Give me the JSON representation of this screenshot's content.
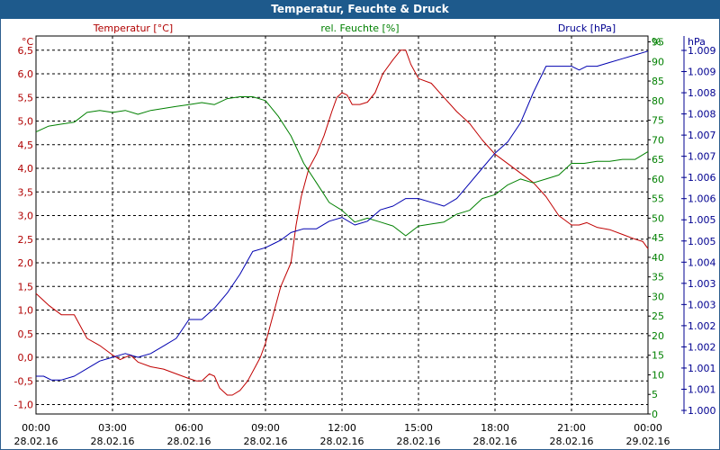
{
  "window": {
    "title": "Temperatur, Feuchte & Druck"
  },
  "chart_data": {
    "type": "line",
    "title": "Temperatur, Feuchte & Druck",
    "grid": true,
    "x": {
      "labels": [
        [
          "00:00",
          "28.02.16"
        ],
        [
          "03:00",
          "28.02.16"
        ],
        [
          "06:00",
          "28.02.16"
        ],
        [
          "09:00",
          "28.02.16"
        ],
        [
          "12:00",
          "28.02.16"
        ],
        [
          "15:00",
          "28.02.16"
        ],
        [
          "18:00",
          "28.02.16"
        ],
        [
          "21:00",
          "28.02.16"
        ],
        [
          "00:00",
          "29.02.16"
        ]
      ],
      "range_hours": [
        0,
        24
      ]
    },
    "axes": {
      "temperature": {
        "label": "Temperatur [°C]",
        "unit": "°C",
        "range": [
          -1.2,
          6.8
        ],
        "ticks": [
          "-1,0",
          "-0,5",
          "0,0",
          "0,5",
          "1,0",
          "1,5",
          "2,0",
          "2,5",
          "3,0",
          "3,5",
          "4,0",
          "4,5",
          "5,0",
          "5,5",
          "6,0",
          "6,5"
        ],
        "color": "#b00000"
      },
      "humidity": {
        "label": "rel. Feuchte [%]",
        "unit": "%",
        "range": [
          0,
          96.5
        ],
        "ticks": [
          "0",
          "5",
          "10",
          "15",
          "20",
          "25",
          "30",
          "35",
          "40",
          "45",
          "50",
          "55",
          "60",
          "65",
          "70",
          "75",
          "80",
          "85",
          "90",
          "95"
        ],
        "color": "#008000"
      },
      "pressure": {
        "label": "Druck [hPa]",
        "unit": "hPa",
        "range": [
          0.9995,
          1.0095
        ],
        "ticks": [
          "1.000",
          "1.001",
          "1.001",
          "1.002",
          "1.002",
          "1.003",
          "1.003",
          "1.004",
          "1.005",
          "1.005",
          "1.006",
          "1.006",
          "1.007",
          "1.007",
          "1.008",
          "1.008",
          "1.009",
          "1.009"
        ],
        "color": "#000090"
      }
    },
    "series": [
      {
        "name": "Temperatur [°C]",
        "axis": "temperature",
        "color": "#c00000",
        "points": [
          [
            0,
            1.35
          ],
          [
            0.5,
            1.1
          ],
          [
            1,
            0.9
          ],
          [
            1.5,
            0.9
          ],
          [
            2,
            0.4
          ],
          [
            2.5,
            0.25
          ],
          [
            3,
            0.05
          ],
          [
            3.3,
            -0.05
          ],
          [
            3.7,
            0.05
          ],
          [
            4,
            -0.1
          ],
          [
            4.5,
            -0.2
          ],
          [
            5,
            -0.25
          ],
          [
            5.5,
            -0.35
          ],
          [
            6,
            -0.45
          ],
          [
            6.3,
            -0.5
          ],
          [
            6.5,
            -0.5
          ],
          [
            6.8,
            -0.35
          ],
          [
            7,
            -0.4
          ],
          [
            7.2,
            -0.65
          ],
          [
            7.5,
            -0.8
          ],
          [
            7.7,
            -0.8
          ],
          [
            8,
            -0.7
          ],
          [
            8.3,
            -0.5
          ],
          [
            8.6,
            -0.2
          ],
          [
            8.8,
            0.0
          ],
          [
            9,
            0.3
          ],
          [
            9.3,
            0.9
          ],
          [
            9.6,
            1.5
          ],
          [
            10,
            2.0
          ],
          [
            10.2,
            2.8
          ],
          [
            10.4,
            3.4
          ],
          [
            10.7,
            4.0
          ],
          [
            11,
            4.3
          ],
          [
            11.3,
            4.7
          ],
          [
            11.6,
            5.2
          ],
          [
            11.8,
            5.5
          ],
          [
            12,
            5.6
          ],
          [
            12.2,
            5.55
          ],
          [
            12.4,
            5.35
          ],
          [
            12.7,
            5.35
          ],
          [
            13,
            5.4
          ],
          [
            13.3,
            5.6
          ],
          [
            13.6,
            6.0
          ],
          [
            14,
            6.3
          ],
          [
            14.3,
            6.5
          ],
          [
            14.5,
            6.5
          ],
          [
            14.7,
            6.2
          ],
          [
            15,
            5.9
          ],
          [
            15.5,
            5.8
          ],
          [
            16,
            5.5
          ],
          [
            16.5,
            5.2
          ],
          [
            17,
            4.95
          ],
          [
            17.5,
            4.6
          ],
          [
            18,
            4.3
          ],
          [
            18.5,
            4.1
          ],
          [
            19,
            3.9
          ],
          [
            19.5,
            3.7
          ],
          [
            20,
            3.4
          ],
          [
            20.5,
            3.0
          ],
          [
            21,
            2.8
          ],
          [
            21.3,
            2.8
          ],
          [
            21.6,
            2.85
          ],
          [
            22,
            2.75
          ],
          [
            22.5,
            2.7
          ],
          [
            23,
            2.6
          ],
          [
            23.5,
            2.5
          ],
          [
            23.8,
            2.45
          ],
          [
            24,
            2.3
          ]
        ]
      },
      {
        "name": "rel. Feuchte [%]",
        "axis": "humidity",
        "color": "#008000",
        "points": [
          [
            0,
            72
          ],
          [
            0.5,
            73.5
          ],
          [
            1,
            74
          ],
          [
            1.5,
            74.5
          ],
          [
            2,
            77
          ],
          [
            2.5,
            77.5
          ],
          [
            3,
            77
          ],
          [
            3.5,
            77.5
          ],
          [
            4,
            76.5
          ],
          [
            4.5,
            77.5
          ],
          [
            5,
            78
          ],
          [
            5.5,
            78.5
          ],
          [
            6,
            79
          ],
          [
            6.5,
            79.5
          ],
          [
            7,
            79
          ],
          [
            7.5,
            80.5
          ],
          [
            8,
            81
          ],
          [
            8.5,
            81
          ],
          [
            9,
            80
          ],
          [
            9.5,
            76
          ],
          [
            10,
            71
          ],
          [
            10.5,
            64
          ],
          [
            11,
            59
          ],
          [
            11.5,
            54
          ],
          [
            12,
            52
          ],
          [
            12.5,
            49
          ],
          [
            13,
            50
          ],
          [
            13.5,
            49
          ],
          [
            14,
            48
          ],
          [
            14.5,
            45.5
          ],
          [
            15,
            48
          ],
          [
            15.5,
            48.5
          ],
          [
            16,
            49
          ],
          [
            16.5,
            51
          ],
          [
            17,
            52
          ],
          [
            17.5,
            55
          ],
          [
            18,
            56
          ],
          [
            18.5,
            58.5
          ],
          [
            19,
            60
          ],
          [
            19.5,
            59
          ],
          [
            20,
            60
          ],
          [
            20.5,
            61
          ],
          [
            21,
            64
          ],
          [
            21.5,
            64
          ],
          [
            22,
            64.5
          ],
          [
            22.5,
            64.5
          ],
          [
            23,
            65
          ],
          [
            23.5,
            65
          ],
          [
            24,
            67
          ]
        ]
      },
      {
        "name": "Druck [hPa]",
        "axis": "pressure",
        "color": "#0000b0",
        "points": [
          [
            0,
            1.0005
          ],
          [
            0.3,
            1.0005
          ],
          [
            0.6,
            1.0004
          ],
          [
            1,
            1.0004
          ],
          [
            1.5,
            1.0005
          ],
          [
            2,
            1.0007
          ],
          [
            2.5,
            1.0009
          ],
          [
            3,
            1.001
          ],
          [
            3.5,
            1.0011
          ],
          [
            4,
            1.001
          ],
          [
            4.5,
            1.0011
          ],
          [
            5,
            1.0013
          ],
          [
            5.5,
            1.0015
          ],
          [
            6,
            1.002
          ],
          [
            6.5,
            1.002
          ],
          [
            7,
            1.0023
          ],
          [
            7.5,
            1.0027
          ],
          [
            8,
            1.0032
          ],
          [
            8.5,
            1.0038
          ],
          [
            9,
            1.0039
          ],
          [
            9.3,
            1.004
          ],
          [
            9.6,
            1.0041
          ],
          [
            10,
            1.0043
          ],
          [
            10.5,
            1.0044
          ],
          [
            11,
            1.0044
          ],
          [
            11.5,
            1.0046
          ],
          [
            12,
            1.0047
          ],
          [
            12.5,
            1.0045
          ],
          [
            13,
            1.0046
          ],
          [
            13.5,
            1.0049
          ],
          [
            14,
            1.005
          ],
          [
            14.5,
            1.0052
          ],
          [
            15,
            1.0052
          ],
          [
            15.5,
            1.0051
          ],
          [
            16,
            1.005
          ],
          [
            16.5,
            1.0052
          ],
          [
            17,
            1.0056
          ],
          [
            17.5,
            1.006
          ],
          [
            18,
            1.0064
          ],
          [
            18.5,
            1.0067
          ],
          [
            19,
            1.0072
          ],
          [
            19.5,
            1.008
          ],
          [
            20,
            1.0087
          ],
          [
            20.5,
            1.0087
          ],
          [
            21,
            1.0087
          ],
          [
            21.3,
            1.0086
          ],
          [
            21.6,
            1.0087
          ],
          [
            22,
            1.0087
          ],
          [
            22.5,
            1.0088
          ],
          [
            23,
            1.0089
          ],
          [
            23.5,
            1.009
          ],
          [
            24,
            1.0091
          ]
        ]
      }
    ]
  }
}
